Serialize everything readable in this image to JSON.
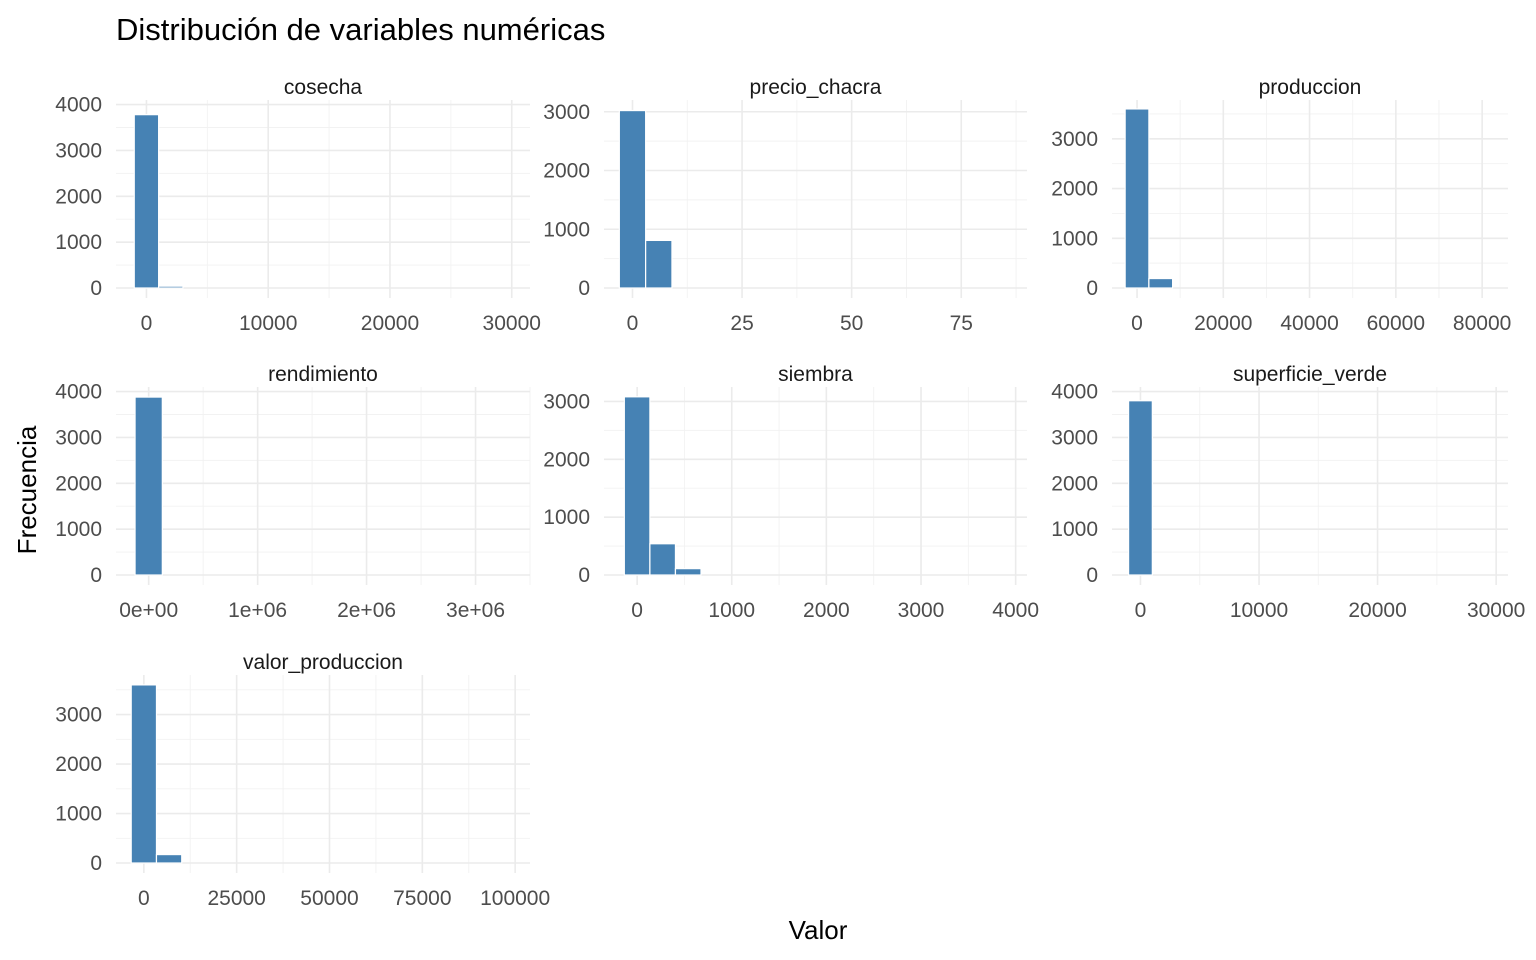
{
  "chart_data": {
    "type": "bar",
    "title": "Distribución de variables numéricas",
    "xlabel": "Valor",
    "ylabel": "Frecuencia",
    "bar_color": "#4682b4",
    "grid": true,
    "facets": [
      {
        "name": "cosecha",
        "xlim": [
          -2500,
          31500
        ],
        "ylim": [
          0,
          4100
        ],
        "xticks": [
          0,
          10000,
          20000,
          30000
        ],
        "xtick_labels": [
          "0",
          "10000",
          "20000",
          "30000"
        ],
        "yticks": [
          0,
          1000,
          2000,
          3000,
          4000
        ],
        "ytick_labels": [
          "0",
          "1000",
          "2000",
          "3000",
          "4000"
        ],
        "bin_width": 2000,
        "bins": [
          {
            "x": 0,
            "count": 3780
          },
          {
            "x": 2000,
            "count": 40
          }
        ]
      },
      {
        "name": "precio_chacra",
        "xlim": [
          -6.5,
          90
        ],
        "ylim": [
          0,
          3200
        ],
        "xticks": [
          0,
          25,
          50,
          75
        ],
        "xtick_labels": [
          "0",
          "25",
          "50",
          "75"
        ],
        "yticks": [
          0,
          1000,
          2000,
          3000
        ],
        "ytick_labels": [
          "0",
          "1000",
          "2000",
          "3000"
        ],
        "bin_width": 6,
        "bins": [
          {
            "x": 0,
            "count": 3020
          },
          {
            "x": 6,
            "count": 810
          }
        ]
      },
      {
        "name": "produccion",
        "xlim": [
          -5800,
          86000
        ],
        "ylim": [
          0,
          3780
        ],
        "xticks": [
          0,
          20000,
          40000,
          60000,
          80000
        ],
        "xtick_labels": [
          "0",
          "20000",
          "40000",
          "60000",
          "80000"
        ],
        "yticks": [
          0,
          1000,
          2000,
          3000
        ],
        "ytick_labels": [
          "0",
          "1000",
          "2000",
          "3000"
        ],
        "bin_width": 5500,
        "bins": [
          {
            "x": 0,
            "count": 3600
          },
          {
            "x": 5500,
            "count": 190
          }
        ]
      },
      {
        "name": "rendimiento",
        "xlim": [
          -300000,
          3500000
        ],
        "ylim": [
          0,
          4100
        ],
        "xticks": [
          0,
          1000000,
          2000000,
          3000000
        ],
        "xtick_labels": [
          "0e+00",
          "1e+06",
          "2e+06",
          "3e+06"
        ],
        "yticks": [
          0,
          1000,
          2000,
          3000,
          4000
        ],
        "ytick_labels": [
          "0",
          "1000",
          "2000",
          "3000",
          "4000"
        ],
        "bin_width": 250000,
        "bins": [
          {
            "x": 0,
            "count": 3880
          }
        ]
      },
      {
        "name": "siembra",
        "xlim": [
          -350,
          4120
        ],
        "ylim": [
          0,
          3250
        ],
        "xticks": [
          0,
          1000,
          2000,
          3000,
          4000
        ],
        "xtick_labels": [
          "0",
          "1000",
          "2000",
          "3000",
          "4000"
        ],
        "yticks": [
          0,
          1000,
          2000,
          3000
        ],
        "ytick_labels": [
          "0",
          "1000",
          "2000",
          "3000"
        ],
        "bin_width": 270,
        "bins": [
          {
            "x": 0,
            "count": 3080
          },
          {
            "x": 270,
            "count": 540
          },
          {
            "x": 540,
            "count": 110
          }
        ]
      },
      {
        "name": "superficie_verde",
        "xlim": [
          -2400,
          31000
        ],
        "ylim": [
          0,
          4100
        ],
        "xticks": [
          0,
          10000,
          20000,
          30000
        ],
        "xtick_labels": [
          "0",
          "10000",
          "20000",
          "30000"
        ],
        "yticks": [
          0,
          1000,
          2000,
          3000,
          4000
        ],
        "ytick_labels": [
          "0",
          "1000",
          "2000",
          "3000",
          "4000"
        ],
        "bin_width": 2000,
        "bins": [
          {
            "x": 0,
            "count": 3800
          }
        ]
      },
      {
        "name": "valor_produccion",
        "xlim": [
          -7500,
          104000
        ],
        "ylim": [
          0,
          3800
        ],
        "xticks": [
          0,
          25000,
          50000,
          75000,
          100000
        ],
        "xtick_labels": [
          "0",
          "25000",
          "50000",
          "75000",
          "100000"
        ],
        "yticks": [
          0,
          1000,
          2000,
          3000
        ],
        "ytick_labels": [
          "0",
          "1000",
          "2000",
          "3000"
        ],
        "bin_width": 6800,
        "bins": [
          {
            "x": 0,
            "count": 3600
          },
          {
            "x": 6800,
            "count": 170
          }
        ]
      }
    ]
  }
}
